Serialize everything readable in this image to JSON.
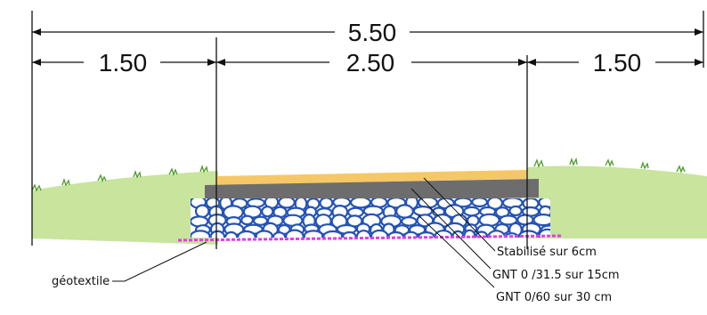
{
  "dimensions": {
    "total": "5.50",
    "left_shoulder": "1.50",
    "carriageway": "2.50",
    "right_shoulder": "1.50"
  },
  "layers": {
    "surface": "Stabilisé sur 6cm",
    "base": "GNT 0 /31.5 sur 15cm",
    "subbase": "GNT 0/60 sur 30 cm",
    "geotextile": "géotextile"
  },
  "colors": {
    "surface": "#f6c766",
    "base": "#6d6d6d",
    "subbase_stroke": "#2453b4",
    "geotextile": "#e23be8",
    "embankment": "#c8e49d",
    "grass": "#4d9b2a"
  }
}
